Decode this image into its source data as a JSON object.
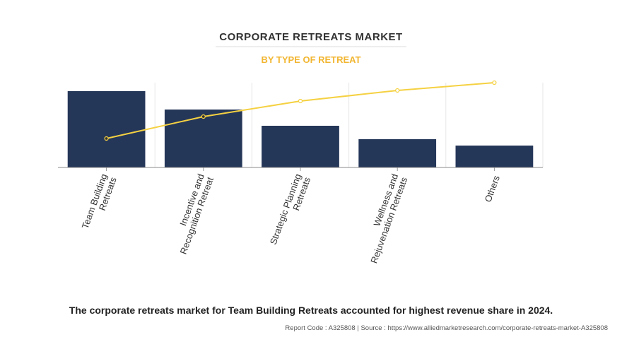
{
  "chart_data": {
    "type": "bar",
    "title": "CORPORATE RETREATS MARKET",
    "subtitle": "BY TYPE OF RETREAT",
    "categories": [
      [
        "Team Building",
        "Retreats"
      ],
      [
        "Incentive and",
        "Recognition Retreat"
      ],
      [
        "Strategic Planning",
        "Retreats"
      ],
      [
        "Wellness and",
        "Rejuvenation Retreats"
      ],
      [
        "Others"
      ]
    ],
    "series": [
      {
        "type": "bar",
        "color": "#253759",
        "values": [
          108,
          82,
          59,
          40,
          31
        ]
      },
      {
        "type": "line",
        "color": "#f5d142",
        "axis": "y2",
        "values": [
          41,
          72,
          94,
          109,
          120
        ]
      }
    ],
    "ylim": [
      0,
      120
    ],
    "y2lim": [
      0,
      120
    ],
    "grid": true,
    "caption": "The corporate retreats market for Team Building Retreats accounted for highest revenue share in 2024.",
    "source": "Report Code : A325808  |  Source : https://www.alliedmarketresearch.com/corporate-retreats-market-A325808"
  }
}
